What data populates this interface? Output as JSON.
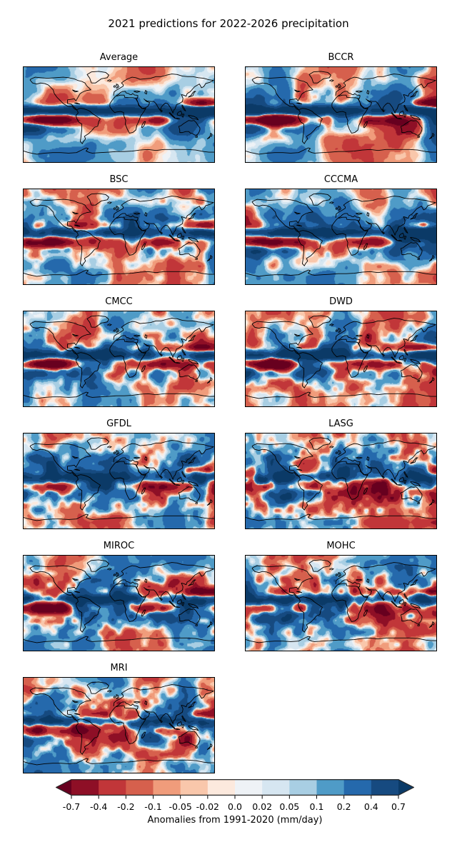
{
  "title": "2021 predictions for 2022-2026 precipitation",
  "panels": [
    {
      "name": "Average",
      "render": {
        "seed": 11,
        "a1": 0.5,
        "a2": 0.14,
        "a3": 0.04,
        "enso": 1.05
      }
    },
    {
      "name": "BCCR",
      "render": {
        "seed": 23,
        "a1": 0.52,
        "a2": 0.22,
        "a3": 0.07,
        "enso": 1.0
      }
    },
    {
      "name": "BSC",
      "render": {
        "seed": 37,
        "a1": 0.48,
        "a2": 0.3,
        "a3": 0.12,
        "enso": 0.78
      }
    },
    {
      "name": "CCCMA",
      "render": {
        "seed": 41,
        "a1": 0.5,
        "a2": 0.26,
        "a3": 0.1,
        "enso": 0.88
      }
    },
    {
      "name": "CMCC",
      "render": {
        "seed": 57,
        "a1": 0.5,
        "a2": 0.3,
        "a3": 0.15,
        "enso": 0.85
      }
    },
    {
      "name": "DWD",
      "render": {
        "seed": 63,
        "a1": 0.5,
        "a2": 0.3,
        "a3": 0.15,
        "enso": 0.98
      }
    },
    {
      "name": "GFDL",
      "render": {
        "seed": 78,
        "a1": 0.52,
        "a2": 0.32,
        "a3": 0.18,
        "enso": 0.62
      }
    },
    {
      "name": "LASG",
      "render": {
        "seed": 85,
        "a1": 0.52,
        "a2": 0.38,
        "a3": 0.26,
        "enso": 0.48
      }
    },
    {
      "name": "MIROC",
      "render": {
        "seed": 94,
        "a1": 0.5,
        "a2": 0.33,
        "a3": 0.2,
        "enso": 0.72
      }
    },
    {
      "name": "MOHC",
      "render": {
        "seed": 103,
        "a1": 0.5,
        "a2": 0.33,
        "a3": 0.2,
        "enso": 0.72
      }
    },
    {
      "name": "MRI",
      "render": {
        "seed": 117,
        "a1": 0.5,
        "a2": 0.32,
        "a3": 0.2,
        "enso": 0.62
      }
    }
  ],
  "colorbar": {
    "label": "Anomalies from 1991-2020 (mm/day)",
    "ticks": [
      "-0.7",
      "-0.4",
      "-0.2",
      "-0.1",
      "-0.05",
      "-0.02",
      "0.0",
      "0.02",
      "0.05",
      "0.1",
      "0.2",
      "0.4",
      "0.7"
    ],
    "boundaries": [
      -0.7,
      -0.4,
      -0.2,
      -0.1,
      -0.05,
      -0.02,
      0.0,
      0.02,
      0.05,
      0.1,
      0.2,
      0.4,
      0.7
    ],
    "colors": [
      "#8e0f26",
      "#c13639",
      "#d6604d",
      "#f09c7b",
      "#f9c7ab",
      "#fce9dd",
      "#eef2f6",
      "#d6e6f1",
      "#a8cee3",
      "#4f9bc7",
      "#2569ac",
      "#164a80"
    ],
    "under": "#67001f",
    "over": "#0b3a67",
    "outline": "#2a2a2a"
  },
  "chart_data": {
    "type": "heatmap",
    "title": "2021 predictions for 2022-2026 precipitation",
    "subplot_titles": [
      "Average",
      "BCCR",
      "BSC",
      "CCCMA",
      "CMCC",
      "DWD",
      "GFDL",
      "LASG",
      "MIROC",
      "MOHC",
      "MRI"
    ],
    "subplot_grid_rows": [
      [
        "Average",
        "BCCR"
      ],
      [
        "BSC",
        "CCCMA"
      ],
      [
        "CMCC",
        "DWD"
      ],
      [
        "GFDL",
        "LASG"
      ],
      [
        "MIROC",
        "MOHC"
      ],
      [
        "MRI"
      ]
    ],
    "map_type": "global equirectangular world maps with black coastlines, filled precipitation-anomaly contours",
    "colorbar_label": "Anomalies from 1991-2020 (mm/day)",
    "colorbar_tick_values": [
      -0.7,
      -0.4,
      -0.2,
      -0.1,
      -0.05,
      -0.02,
      0.0,
      0.02,
      0.05,
      0.1,
      0.2,
      0.4,
      0.7
    ],
    "colorbar_orientation": "horizontal",
    "colorbar_extended_both_ends": true,
    "palette_name": "RdBu (red = negative/dry, blue = positive/wet), 12 discrete bins",
    "legend_position": "bottom"
  }
}
